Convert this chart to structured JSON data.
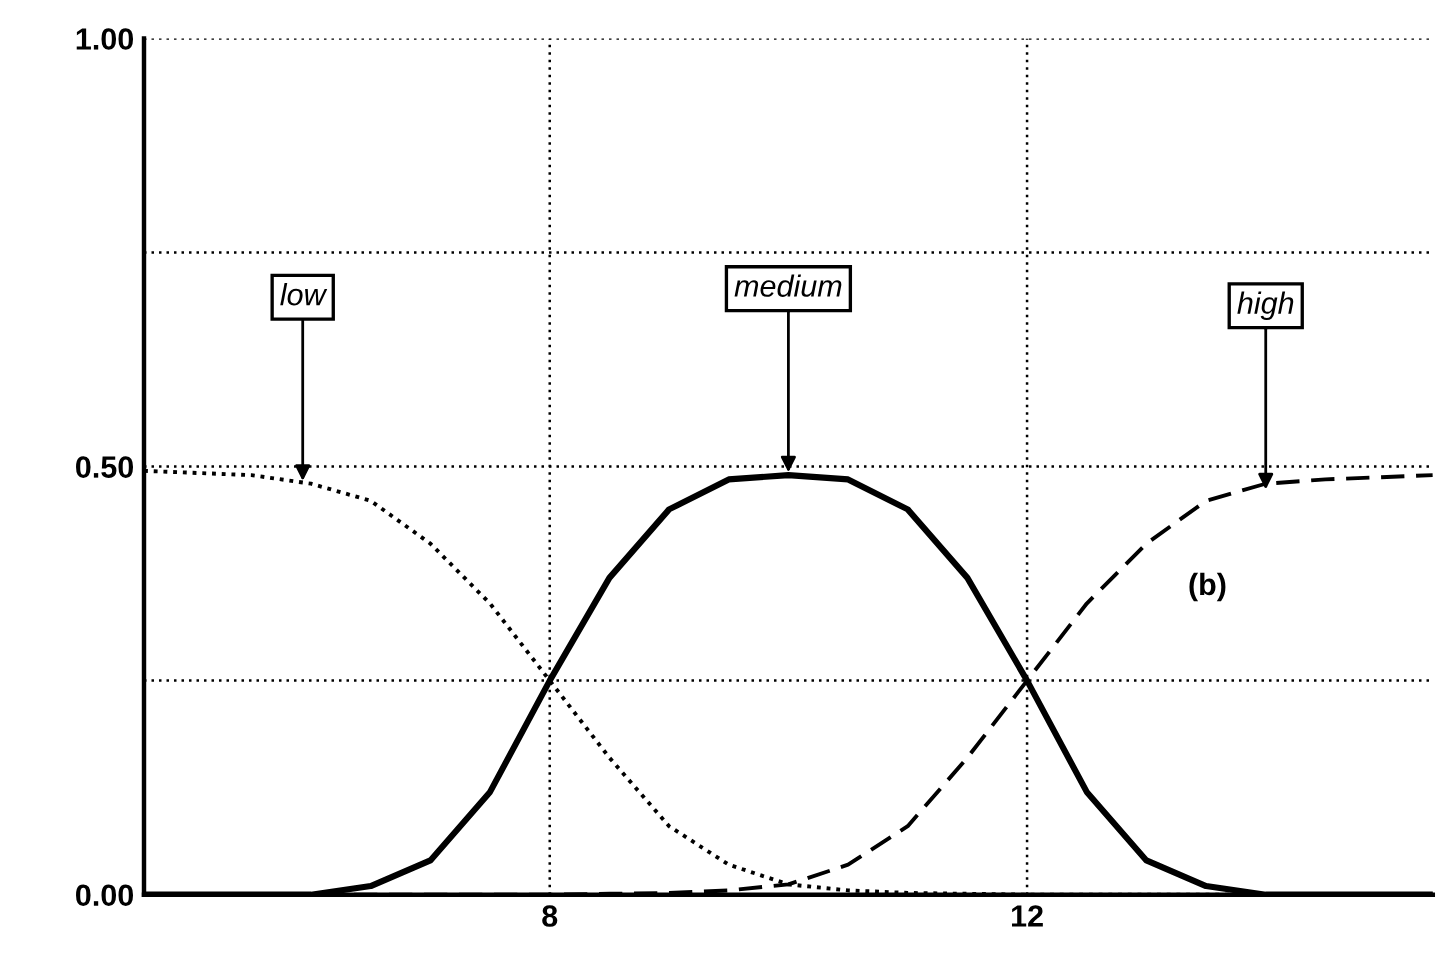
{
  "chart_data": {
    "type": "line",
    "xlim": [
      4.6,
      15.4
    ],
    "xticks": [
      8,
      12
    ],
    "ylim": [
      0,
      1
    ],
    "yticks": [
      {
        "value": 0,
        "label": "0.00"
      },
      {
        "value": 0.25,
        "label": null
      },
      {
        "value": 0.5,
        "label": "0.50"
      },
      {
        "value": 0.75,
        "label": null
      },
      {
        "value": 1,
        "label": "1.00"
      }
    ],
    "grid": true,
    "marker": "none",
    "x": [
      4.6,
      5.5,
      6,
      6.5,
      7,
      7.5,
      8,
      8.5,
      9,
      9.5,
      10,
      10.5,
      11,
      11.5,
      12,
      12.5,
      13,
      13.5,
      14,
      14.5,
      15.4
    ],
    "series": [
      {
        "color": "#000000",
        "line_style": "dotted",
        "values": [
          0.495,
          0.49,
          0.48,
          0.46,
          0.41,
          0.34,
          0.25,
          0.16,
          0.08,
          0.035,
          0.012,
          0.005,
          0.002,
          0.001,
          0,
          0,
          0,
          0,
          0,
          0,
          0
        ]
      },
      {
        "color": "#000000",
        "line_style": "solid",
        "values": [
          0,
          0,
          0,
          0.01,
          0.04,
          0.12,
          0.25,
          0.37,
          0.45,
          0.485,
          0.49,
          0.485,
          0.45,
          0.37,
          0.25,
          0.12,
          0.04,
          0.01,
          0,
          0,
          0
        ]
      },
      {
        "color": "#000000",
        "line_style": "dashed",
        "values": [
          0,
          0,
          0,
          0,
          0,
          0,
          0,
          0.001,
          0.002,
          0.005,
          0.012,
          0.035,
          0.08,
          0.16,
          0.25,
          0.34,
          0.41,
          0.46,
          0.48,
          0.485,
          0.49
        ]
      }
    ],
    "annotations": [
      {
        "text": "low",
        "x": 5.93,
        "y": 0.48
      },
      {
        "text": "medium",
        "x": 10.0,
        "y": 0.49
      },
      {
        "text": "high",
        "x": 14.0,
        "y": 0.47
      },
      "(b)"
    ]
  }
}
